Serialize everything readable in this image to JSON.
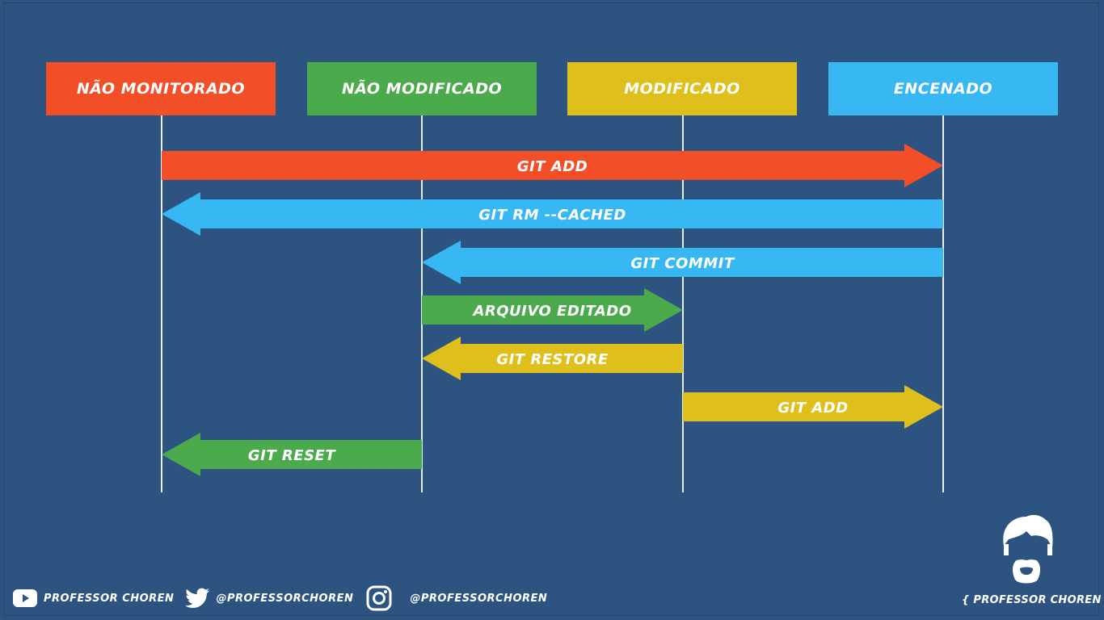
{
  "states": [
    {
      "label": "NÃO MONITORADO",
      "color": "#f24f29"
    },
    {
      "label": "NÃO MODIFICADO",
      "color": "#4bab4c"
    },
    {
      "label": "MODIFICADO",
      "color": "#dfbf1b"
    },
    {
      "label": "ENCENADO",
      "color": "#38b8f2"
    }
  ],
  "transitions": [
    {
      "label": "GIT ADD",
      "from": 0,
      "to": 3,
      "color": "#f24f29"
    },
    {
      "label": "GIT RM --CACHED",
      "from": 3,
      "to": 0,
      "color": "#38b8f2"
    },
    {
      "label": "GIT COMMIT",
      "from": 3,
      "to": 1,
      "color": "#38b8f2"
    },
    {
      "label": "ARQUIVO EDITADO",
      "from": 1,
      "to": 2,
      "color": "#4bab4c"
    },
    {
      "label": "GIT RESTORE",
      "from": 2,
      "to": 1,
      "color": "#dfbf1b"
    },
    {
      "label": "GIT ADD",
      "from": 2,
      "to": 3,
      "color": "#dfbf1b"
    },
    {
      "label": "GIT RESET",
      "from": 1,
      "to": 0,
      "color": "#4bab4c"
    }
  ],
  "footer": {
    "youtube_icon": "youtube-icon",
    "youtube_text": "PROFESSOR CHOREN",
    "twitter_icon": "twitter-icon",
    "twitter_text": "@PROFESSORCHOREN",
    "instagram_icon": "instagram-icon",
    "instagram_text": "@PROFESSORCHOREN"
  },
  "brand": {
    "logo_icon": "professor-face-icon",
    "name": "{ PROFESSOR CHOREN }"
  }
}
